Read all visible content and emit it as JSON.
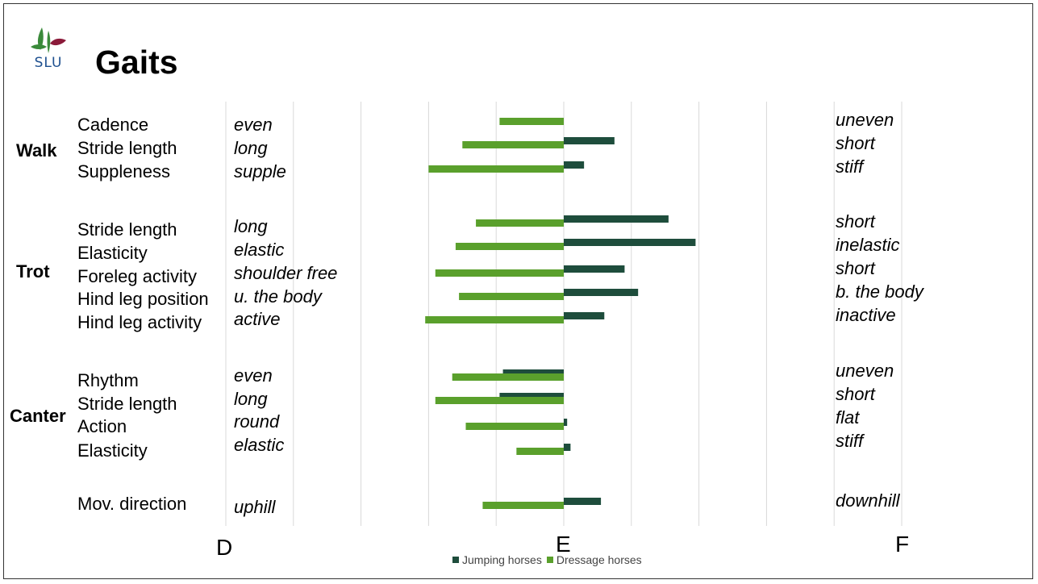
{
  "slide": {
    "title": "Gaits",
    "logo_text": "SLU"
  },
  "colors": {
    "jumping": "#1e4d3c",
    "dressage": "#5aa02c",
    "logo_green": "#3a8a3a",
    "logo_red": "#8b1a3a",
    "logo_text": "#1d4f8f",
    "grid": "#d9d9d9"
  },
  "groups": [
    {
      "gait": "Walk",
      "traits": [
        {
          "trait": "Cadence",
          "left": "even",
          "right": "uneven"
        },
        {
          "trait": "Stride length",
          "left": "long",
          "right": "short"
        },
        {
          "trait": "Suppleness",
          "left": "supple",
          "right": "stiff"
        }
      ]
    },
    {
      "gait": "Trot",
      "traits": [
        {
          "trait": "Stride length",
          "left": "long",
          "right": "short"
        },
        {
          "trait": "Elasticity",
          "left": "elastic",
          "right": "inelastic"
        },
        {
          "trait": "Foreleg activity",
          "left": "shoulder free",
          "right": "short"
        },
        {
          "trait": "Hind leg position",
          "left": "u. the body",
          "right": "b. the body"
        },
        {
          "trait": "Hind leg activity",
          "left": "active",
          "right": "inactive"
        }
      ]
    },
    {
      "gait": "Canter",
      "traits": [
        {
          "trait": "Rhythm",
          "left": "even",
          "right": "uneven"
        },
        {
          "trait": "Stride length",
          "left": "long",
          "right": "short"
        },
        {
          "trait": "Action",
          "left": "round",
          "right": "flat"
        },
        {
          "trait": "Elasticity",
          "left": "elastic",
          "right": "stiff"
        }
      ]
    },
    {
      "gait": "",
      "traits": [
        {
          "trait": "Mov. direction",
          "left": "uphill",
          "right": "downhill"
        }
      ]
    }
  ],
  "chart_data": {
    "type": "bar",
    "orientation": "horizontal",
    "x_tick_labels": [
      "D",
      "E",
      "F"
    ],
    "xlim": [
      -1,
      1
    ],
    "grid": true,
    "legend_position": "bottom",
    "series": [
      {
        "name": "Jumping horses",
        "color": "#1e4d3c",
        "values": [
          0,
          0.15,
          0.06,
          0.31,
          0.39,
          0.18,
          0.22,
          0.12,
          -0.18,
          -0.19,
          0.01,
          0.02,
          0.11
        ]
      },
      {
        "name": "Dressage horses",
        "color": "#5aa02c",
        "values": [
          -0.19,
          -0.3,
          -0.4,
          -0.26,
          -0.32,
          -0.38,
          -0.31,
          -0.41,
          -0.33,
          -0.38,
          -0.29,
          -0.14,
          -0.24
        ]
      }
    ]
  }
}
